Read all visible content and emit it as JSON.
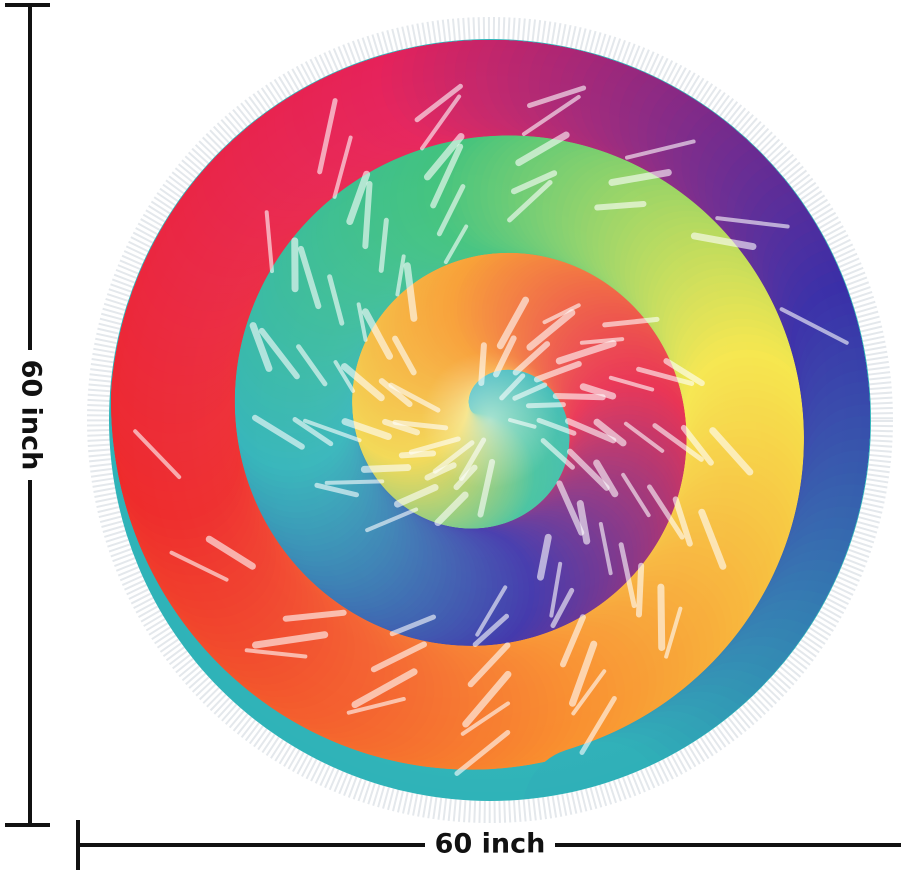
{
  "dimensions": {
    "height_label": "60 inch",
    "width_label": "60 inch"
  }
}
